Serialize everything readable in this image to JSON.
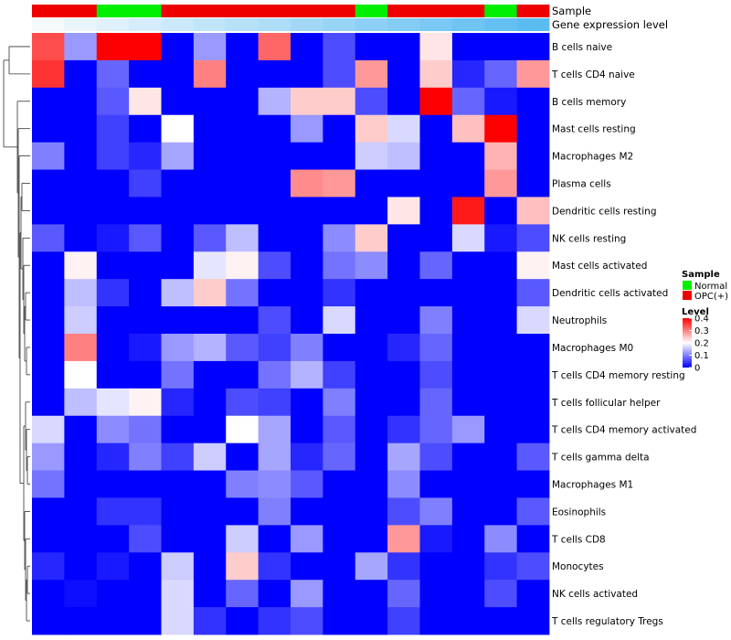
{
  "chart_data": {
    "type": "heatmap",
    "annotation_tracks": [
      {
        "name": "Sample",
        "values": [
          "OPC(+)",
          "OPC(+)",
          "Normal",
          "Normal",
          "OPC(+)",
          "OPC(+)",
          "OPC(+)",
          "OPC(+)",
          "OPC(+)",
          "OPC(+)",
          "Normal",
          "OPC(+)",
          "OPC(+)",
          "OPC(+)",
          "Normal",
          "OPC(+)"
        ],
        "colors": {
          "Normal": "#00ee00",
          "OPC(+)": "#ee0000"
        }
      },
      {
        "name": "Gene expression level",
        "values": [
          1,
          2,
          3,
          4,
          5,
          6,
          7,
          8,
          9,
          10,
          11,
          12,
          13,
          14,
          15,
          16
        ],
        "gradient": [
          "#f4f9fc",
          "#5bbcf1"
        ]
      }
    ],
    "rows": [
      "B cells naive",
      "T cells CD4 naive",
      "B cells memory",
      "Mast cells resting",
      "Macrophages M2",
      "Plasma cells",
      "Dendritic cells resting",
      "NK cells resting",
      "Mast cells activated",
      "Dendritic cells activated",
      "Neutrophils",
      "Macrophages M0",
      "T cells CD4 memory resting",
      "T cells follicular helper",
      "T cells CD4 memory activated",
      "T cells gamma delta",
      "Macrophages M1",
      "Eosinophils",
      "T cells CD8",
      "Monocytes",
      "NK cells activated",
      "T cells regulatory  Tregs"
    ],
    "values": [
      [
        0.34,
        0.12,
        0.4,
        0.4,
        0.0,
        0.12,
        0.0,
        0.32,
        0.0,
        0.06,
        0.0,
        0.0,
        0.22,
        0.0,
        0.0,
        0.0
      ],
      [
        0.36,
        0.0,
        0.08,
        0.0,
        0.0,
        0.3,
        0.0,
        0.0,
        0.0,
        0.06,
        0.28,
        0.0,
        0.24,
        0.03,
        0.08,
        0.28
      ],
      [
        0.0,
        0.0,
        0.07,
        0.22,
        0.0,
        0.0,
        0.0,
        0.14,
        0.24,
        0.24,
        0.06,
        0.0,
        0.4,
        0.08,
        0.02,
        0.0
      ],
      [
        0.0,
        0.0,
        0.05,
        0.0,
        0.2,
        0.0,
        0.0,
        0.0,
        0.12,
        0.0,
        0.24,
        0.17,
        0.0,
        0.25,
        0.4,
        0.0
      ],
      [
        0.1,
        0.0,
        0.05,
        0.03,
        0.13,
        0.0,
        0.0,
        0.0,
        0.0,
        0.0,
        0.16,
        0.15,
        0.0,
        0.0,
        0.26,
        0.0
      ],
      [
        0.0,
        0.0,
        0.0,
        0.05,
        0.0,
        0.0,
        0.0,
        0.0,
        0.29,
        0.28,
        0.0,
        0.0,
        0.0,
        0.0,
        0.28,
        0.0
      ],
      [
        0.0,
        0.0,
        0.0,
        0.0,
        0.0,
        0.0,
        0.0,
        0.0,
        0.0,
        0.0,
        0.0,
        0.22,
        0.0,
        0.38,
        0.0,
        0.25
      ],
      [
        0.07,
        0.0,
        0.02,
        0.07,
        0.0,
        0.07,
        0.15,
        0.0,
        0.0,
        0.11,
        0.24,
        0.0,
        0.0,
        0.17,
        0.02,
        0.06
      ],
      [
        0.0,
        0.21,
        0.0,
        0.0,
        0.0,
        0.18,
        0.21,
        0.06,
        0.0,
        0.09,
        0.11,
        0.0,
        0.08,
        0.0,
        0.0,
        0.21
      ],
      [
        0.0,
        0.15,
        0.04,
        0.0,
        0.15,
        0.24,
        0.09,
        0.0,
        0.0,
        0.04,
        0.0,
        0.0,
        0.0,
        0.0,
        0.0,
        0.07
      ],
      [
        0.0,
        0.16,
        0.0,
        0.0,
        0.0,
        0.0,
        0.0,
        0.06,
        0.0,
        0.17,
        0.0,
        0.0,
        0.1,
        0.0,
        0.0,
        0.17
      ],
      [
        0.0,
        0.3,
        0.0,
        0.02,
        0.12,
        0.14,
        0.07,
        0.05,
        0.1,
        0.0,
        0.0,
        0.03,
        0.08,
        0.0,
        0.0,
        0.0
      ],
      [
        0.0,
        0.2,
        0.0,
        0.0,
        0.09,
        0.0,
        0.0,
        0.09,
        0.14,
        0.05,
        0.0,
        0.0,
        0.06,
        0.0,
        0.0,
        0.0
      ],
      [
        0.0,
        0.15,
        0.18,
        0.21,
        0.03,
        0.0,
        0.06,
        0.05,
        0.0,
        0.1,
        0.0,
        0.0,
        0.08,
        0.0,
        0.0,
        0.0
      ],
      [
        0.17,
        0.0,
        0.11,
        0.09,
        0.0,
        0.0,
        0.2,
        0.13,
        0.0,
        0.07,
        0.0,
        0.04,
        0.08,
        0.12,
        0.0,
        0.0
      ],
      [
        0.12,
        0.0,
        0.03,
        0.1,
        0.05,
        0.16,
        0.0,
        0.13,
        0.03,
        0.08,
        0.0,
        0.13,
        0.06,
        0.0,
        0.0,
        0.07
      ],
      [
        0.09,
        0.0,
        0.0,
        0.0,
        0.0,
        0.0,
        0.1,
        0.11,
        0.07,
        0.0,
        0.0,
        0.11,
        0.0,
        0.0,
        0.0,
        0.0
      ],
      [
        0.0,
        0.0,
        0.04,
        0.04,
        0.0,
        0.0,
        0.0,
        0.1,
        0.0,
        0.0,
        0.0,
        0.06,
        0.1,
        0.0,
        0.0,
        0.07
      ],
      [
        0.0,
        0.0,
        0.0,
        0.06,
        0.0,
        0.0,
        0.16,
        0.0,
        0.12,
        0.0,
        0.0,
        0.28,
        0.02,
        0.0,
        0.11,
        0.0
      ],
      [
        0.03,
        0.0,
        0.02,
        0.0,
        0.16,
        0.0,
        0.24,
        0.04,
        0.0,
        0.0,
        0.13,
        0.04,
        0.0,
        0.0,
        0.04,
        0.06
      ],
      [
        0.0,
        0.01,
        0.0,
        0.0,
        0.17,
        0.0,
        0.08,
        0.0,
        0.12,
        0.0,
        0.0,
        0.08,
        0.0,
        0.0,
        0.06,
        0.0
      ],
      [
        0.0,
        0.0,
        0.0,
        0.0,
        0.17,
        0.04,
        0.0,
        0.04,
        0.06,
        0.0,
        0.0,
        0.05,
        0.0,
        0.0,
        0.0,
        0.0
      ]
    ],
    "color_scale": {
      "min": 0,
      "max": 0.4,
      "stops": [
        {
          "value": 0,
          "color": "#0000ff"
        },
        {
          "value": 0.2,
          "color": "#ffffff"
        },
        {
          "value": 0.4,
          "color": "#ff0000"
        }
      ]
    },
    "legend": {
      "sample_title": "Sample",
      "sample_entries": [
        {
          "label": "Normal",
          "color": "#00ee00"
        },
        {
          "label": "OPC(+)",
          "color": "#ee0000"
        }
      ],
      "level_title": "Level",
      "level_ticks": [
        "0.4",
        "0.3",
        "0.2",
        "0.1",
        "0"
      ],
      "level_tick_values": [
        0.4,
        0.3,
        0.2,
        0.1,
        0
      ]
    }
  }
}
